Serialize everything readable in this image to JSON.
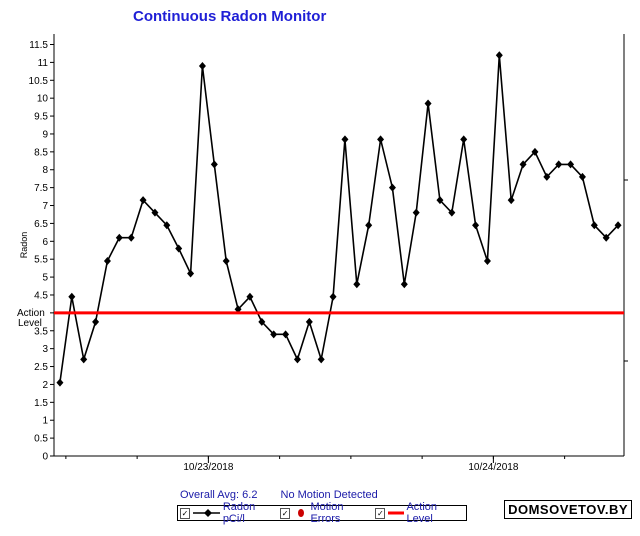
{
  "title": "Continuous Radon Monitor",
  "summary": {
    "overall_avg": "Overall Avg: 6.2",
    "motion_status": "No Motion Detected"
  },
  "legend": {
    "radon_label": "Radon pCi/l",
    "motion_label": "Motion Errors",
    "action_label": "Action Level",
    "check_glyph": "✓"
  },
  "watermark": "DOMSOVETOV.BY",
  "colors": {
    "series": "#000000",
    "action_line": "#ff0000",
    "motion_marker": "#cc0000",
    "title": "#1f1fd6",
    "text": "#1a1aa8"
  },
  "chart_data": {
    "type": "line",
    "ylabel": "Radon",
    "ylim": [
      0,
      11.5
    ],
    "yticks": [
      "0",
      "0.5",
      "1",
      "1.5",
      "2",
      "2.5",
      "3",
      "3.5",
      "4",
      "4.5",
      "5",
      "5.5",
      "6",
      "6.5",
      "7",
      "7.5",
      "8",
      "8.5",
      "9",
      "9.5",
      "10",
      "10.5",
      "11",
      "11.5"
    ],
    "x_labels": [
      {
        "hour": 12.5,
        "label": "10/23/2018"
      },
      {
        "hour": 36.5,
        "label": "10/24/2018"
      }
    ],
    "x_range_hours": [
      -0.5,
      47.5
    ],
    "action_level": 4,
    "action_label_lines": [
      "Action",
      "Level"
    ],
    "series": [
      {
        "name": "Radon pCi/l",
        "values": [
          2.05,
          4.45,
          2.7,
          3.75,
          5.45,
          6.1,
          6.1,
          7.15,
          6.8,
          6.45,
          5.8,
          5.1,
          10.9,
          8.15,
          5.45,
          4.1,
          4.45,
          3.75,
          3.4,
          3.4,
          2.7,
          3.75,
          2.7,
          4.45,
          8.85,
          4.8,
          6.45,
          8.85,
          7.5,
          4.8,
          6.8,
          9.85,
          7.15,
          6.8,
          8.85,
          6.45,
          5.45,
          11.2,
          7.15,
          8.15,
          8.5,
          7.8,
          8.15,
          8.15,
          7.8,
          6.45,
          6.1,
          6.45
        ]
      }
    ]
  }
}
